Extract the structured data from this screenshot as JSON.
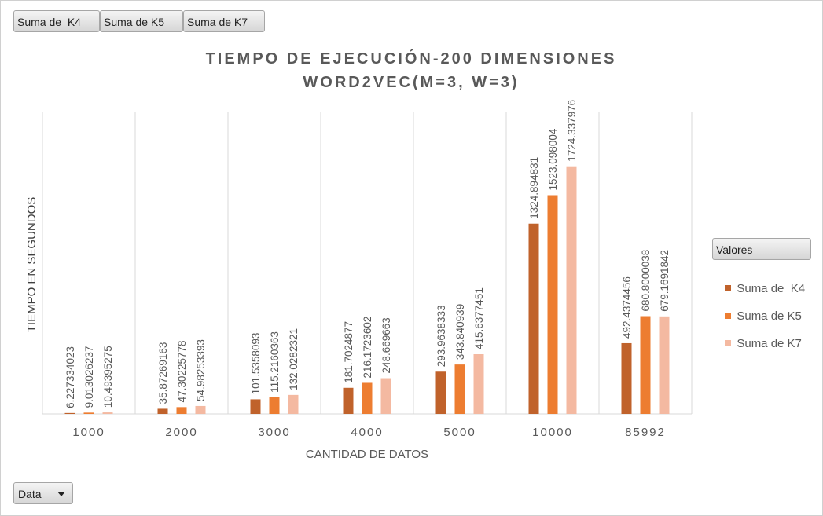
{
  "field_buttons": [
    {
      "label": "Suma de  K4"
    },
    {
      "label": "Suma de K5"
    },
    {
      "label": "Suma de K7"
    }
  ],
  "filter_button": {
    "label": "Data"
  },
  "legend": {
    "title": "Valores",
    "items": [
      {
        "label": "Suma de  K4",
        "color": "#c0622b"
      },
      {
        "label": "Suma de K5",
        "color": "#ed7d31"
      },
      {
        "label": "Suma de K7",
        "color": "#f4b9a1"
      }
    ]
  },
  "chart_data": {
    "type": "bar",
    "title": "TIEMPO DE EJECUCIÓN-200 DIMENSIONES",
    "subtitle": "WORD2VEC(M=3, W=3)",
    "xlabel": "CANTIDAD DE DATOS",
    "ylabel": "TIEMPO EN SEGUNDOS",
    "ylim": [
      0,
      2100
    ],
    "grid": "vertical",
    "legend_position": "right",
    "categories": [
      "1000",
      "2000",
      "3000",
      "4000",
      "5000",
      "10000",
      "85992"
    ],
    "series": [
      {
        "name": "Suma de  K4",
        "color": "#c0622b",
        "values": [
          6.227334023,
          35.87269163,
          101.5358093,
          181.7024877,
          293.9638333,
          1324.894831,
          492.4374456
        ],
        "labels": [
          "6.227334023",
          "35.87269163",
          "101.5358093",
          "181.7024877",
          "293.9638333",
          "1324.894831",
          "492.4374456"
        ]
      },
      {
        "name": "Suma de K5",
        "color": "#ed7d31",
        "values": [
          9.013026237,
          47.30225778,
          115.2160363,
          216.1723602,
          343.840939,
          1523.098004,
          680.8000038
        ],
        "labels": [
          "9.013026237",
          "47.30225778",
          "115.2160363",
          "216.1723602",
          "343.840939",
          "1523.098004",
          "680.8000038"
        ]
      },
      {
        "name": "Suma de K7",
        "color": "#f4b9a1",
        "values": [
          10.49395275,
          54.98253393,
          132.0282321,
          248.669663,
          415.6377451,
          1724.337976,
          679.1691842
        ],
        "labels": [
          "10.49395275",
          "54.98253393",
          "132.0282321",
          "248.669663",
          "415.6377451",
          "1724.337976",
          "679.1691842"
        ]
      }
    ]
  }
}
